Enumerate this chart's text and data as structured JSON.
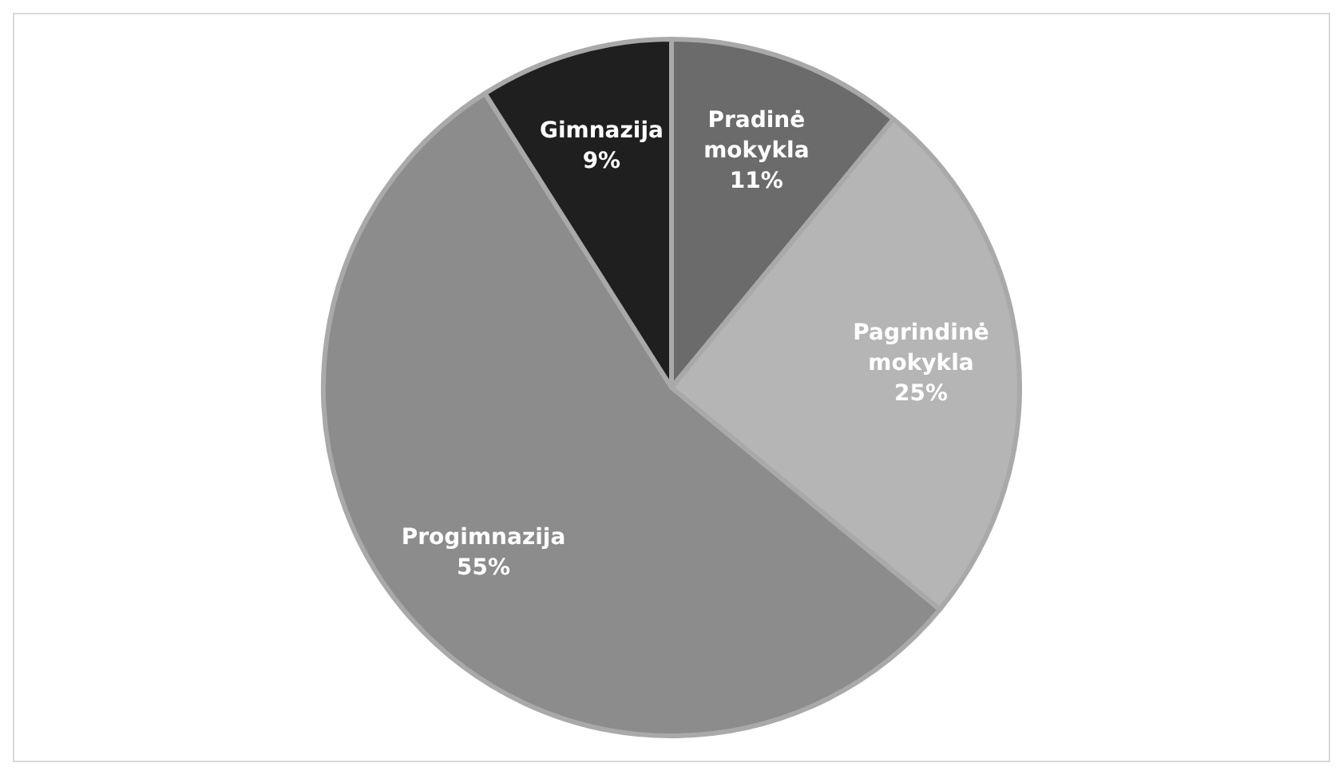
{
  "chart_data": {
    "type": "pie",
    "categories": [
      "Pradinė mokykla",
      "Pagrindinė mokykla",
      "Progimnazija",
      "Gimnazija"
    ],
    "values": [
      11,
      25,
      55,
      9
    ],
    "value_labels": [
      "11%",
      "25%",
      "55%",
      "9%"
    ],
    "colors": [
      "#6b6b6b",
      "#b5b5b5",
      "#8c8c8c",
      "#1f1f1f"
    ]
  }
}
